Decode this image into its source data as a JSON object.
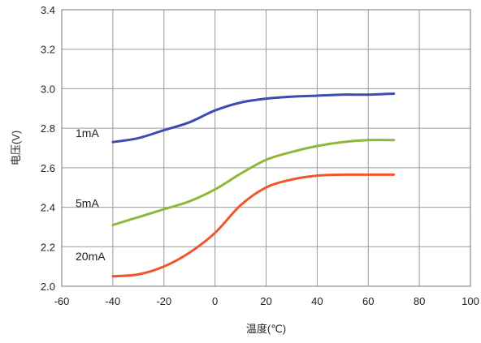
{
  "chart_data": {
    "type": "line",
    "xlabel": "温度(℃)",
    "ylabel": "电压(V)",
    "xlim": [
      -60,
      100
    ],
    "ylim": [
      2.0,
      3.4
    ],
    "x_ticks": [
      -60,
      -40,
      -20,
      0,
      20,
      40,
      60,
      80,
      100
    ],
    "x_tick_labels": [
      "-60",
      "-40",
      "-20",
      "0",
      "20",
      "40",
      "60",
      "80",
      "100"
    ],
    "y_ticks": [
      2.0,
      2.2,
      2.4,
      2.6,
      2.8,
      3.0,
      3.2,
      3.4
    ],
    "y_tick_labels": [
      "2.0",
      "2.2",
      "2.4",
      "2.6",
      "2.8",
      "3.0",
      "3.2",
      "3.4"
    ],
    "grid": true,
    "series": [
      {
        "name": "1mA",
        "color": "#3b4bb0",
        "x": [
          -40,
          -30,
          -20,
          -10,
          0,
          10,
          20,
          30,
          40,
          50,
          60,
          70
        ],
        "y": [
          2.73,
          2.75,
          2.79,
          2.83,
          2.89,
          2.93,
          2.95,
          2.96,
          2.965,
          2.97,
          2.97,
          2.975
        ]
      },
      {
        "name": "5mA",
        "color": "#8fb83a",
        "x": [
          -40,
          -30,
          -20,
          -10,
          0,
          10,
          20,
          30,
          40,
          50,
          60,
          70
        ],
        "y": [
          2.31,
          2.35,
          2.39,
          2.43,
          2.49,
          2.57,
          2.64,
          2.68,
          2.71,
          2.73,
          2.74,
          2.74
        ]
      },
      {
        "name": "20mA",
        "color": "#f2552c",
        "x": [
          -40,
          -30,
          -20,
          -10,
          0,
          10,
          20,
          30,
          40,
          50,
          60,
          70
        ],
        "y": [
          2.05,
          2.06,
          2.1,
          2.17,
          2.27,
          2.41,
          2.5,
          2.54,
          2.56,
          2.565,
          2.565,
          2.565
        ]
      }
    ]
  }
}
